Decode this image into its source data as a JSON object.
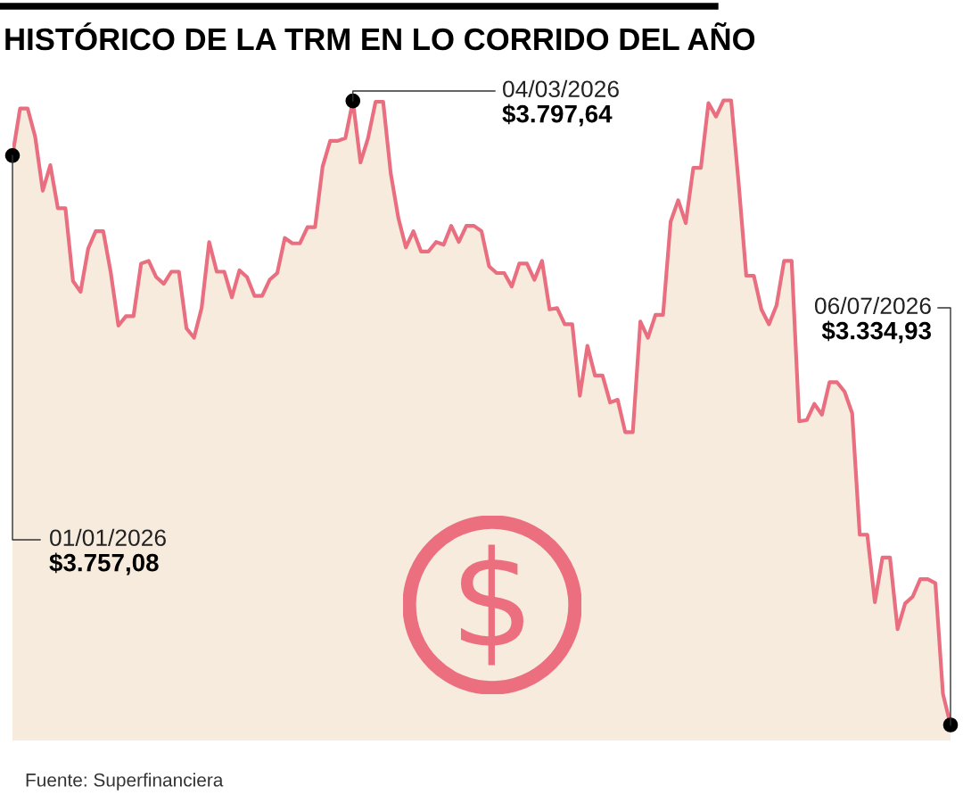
{
  "chart_data": {
    "type": "area",
    "title": "HISTÓRICO DE LA TRM EN LO CORRIDO DEL AÑO",
    "categories": [
      null,
      null,
      null,
      null,
      null,
      null,
      null,
      null,
      null,
      null,
      null,
      null,
      null,
      null,
      null,
      null,
      null,
      null,
      null,
      null,
      null,
      null,
      null,
      null,
      null,
      null,
      null,
      null,
      null,
      null,
      null,
      null,
      null,
      null,
      null,
      null,
      null,
      null,
      null,
      null,
      null,
      null,
      null,
      null,
      null,
      null,
      null,
      null,
      null,
      null,
      null,
      null,
      null,
      null,
      null,
      null,
      null,
      null,
      null,
      null,
      null,
      null,
      null,
      null,
      null,
      null,
      null,
      null,
      null,
      null,
      null,
      null,
      null,
      null,
      null,
      null,
      null,
      null,
      null,
      null,
      null,
      null,
      null,
      null,
      null,
      null,
      null,
      null,
      null,
      null,
      null,
      null,
      null,
      null,
      null,
      null,
      null,
      null,
      null,
      null,
      null,
      null,
      null,
      null,
      null,
      null,
      null,
      null,
      null,
      null,
      null,
      null,
      null,
      null,
      null,
      null,
      null,
      null,
      null,
      null,
      null,
      null,
      null,
      null,
      null
    ],
    "series": [
      {
        "color": "#e96f80",
        "values": [
          3757.08,
          3792,
          3792,
          3771,
          3731,
          3750,
          3718,
          3718,
          3664,
          3656,
          3688,
          3701,
          3701,
          3670,
          3631,
          3638,
          3638,
          3677,
          3679,
          3667,
          3662,
          3671,
          3671,
          3629,
          3622,
          3644,
          3693,
          3671,
          3671,
          3652,
          3672,
          3667,
          3653,
          3653,
          3665,
          3670,
          3696,
          3692,
          3692,
          3704,
          3704,
          3749,
          3768,
          3768,
          3770,
          3797.64,
          3752,
          3770,
          3797,
          3797,
          3744,
          3711,
          3689,
          3701,
          3686,
          3686,
          3693,
          3691,
          3705,
          3693,
          3705,
          3705,
          3701,
          3675,
          3670,
          3670,
          3660,
          3677,
          3677,
          3665,
          3679,
          3643,
          3644,
          3632,
          3632,
          3579,
          3616,
          3594,
          3594,
          3574,
          3576,
          3552,
          3552,
          3634,
          3622,
          3639,
          3639,
          3708,
          3724,
          3707,
          3748,
          3748,
          3796,
          3786,
          3798,
          3798,
          3736,
          3668,
          3668,
          3643,
          3632,
          3646,
          3679,
          3679,
          3560,
          3561,
          3573,
          3565,
          3589,
          3589,
          3582,
          3566,
          3476,
          3476,
          3426,
          3459,
          3459,
          3406,
          3425,
          3430,
          3443,
          3443,
          3440,
          3358,
          3334.93
        ],
        "value_labels": [
          "$3.757,08",
          null,
          null,
          null,
          null,
          null,
          null,
          null,
          null,
          null,
          null,
          null,
          null,
          null,
          null,
          null,
          null,
          null,
          null,
          null,
          null,
          null,
          null,
          null,
          null,
          null,
          null,
          null,
          null,
          null,
          null,
          null,
          null,
          null,
          null,
          null,
          null,
          null,
          null,
          null,
          null,
          null,
          null,
          null,
          null,
          "$3.797,64",
          null,
          null,
          null,
          null,
          null,
          null,
          null,
          null,
          null,
          null,
          null,
          null,
          null,
          null,
          null,
          null,
          null,
          null,
          null,
          null,
          null,
          null,
          null,
          null,
          null,
          null,
          null,
          null,
          null,
          null,
          null,
          null,
          null,
          null,
          null,
          null,
          null,
          null,
          null,
          null,
          null,
          null,
          null,
          null,
          null,
          null,
          null,
          null,
          null,
          null,
          null,
          null,
          null,
          null,
          null,
          null,
          null,
          null,
          null,
          null,
          null,
          null,
          null,
          null,
          null,
          null,
          null,
          null,
          null,
          null,
          null,
          null,
          null,
          null,
          null,
          null,
          null,
          null,
          "$3.334,93"
        ]
      }
    ],
    "tick_labels": false,
    "annotations": [
      "01/01/2026",
      "04/03/2026",
      "06/07/2026",
      "Fuente: Superfinanciera"
    ]
  }
}
